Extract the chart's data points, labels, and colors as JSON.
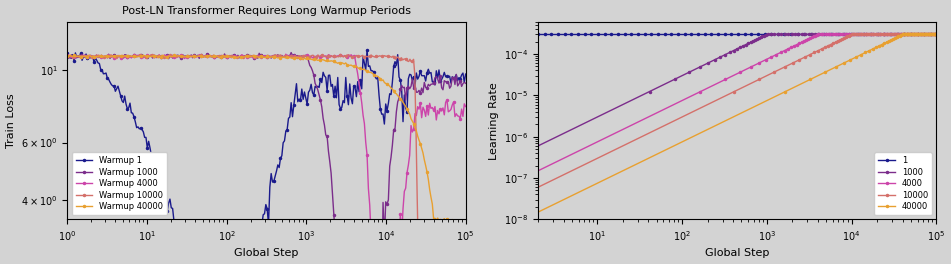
{
  "title": "Post-LN Transformer Requires Long Warmup Periods",
  "colors": {
    "1": "#1a1a8c",
    "1000": "#7b2d8b",
    "4000": "#cc44aa",
    "10000": "#d4706a",
    "40000": "#e8a030"
  },
  "warmup_labels": [
    "1",
    "1000",
    "4000",
    "10000",
    "40000"
  ],
  "max_lr": 0.0003,
  "bg_color": "#d3d3d3",
  "marker": ".",
  "markersize": 3,
  "linewidth": 1.0,
  "left_xlim": [
    1,
    100000
  ],
  "left_ylim": [
    3.5,
    14
  ],
  "right_xlim": [
    2,
    100000
  ],
  "right_ylim": [
    1e-08,
    0.0006
  ],
  "yticks_left": [
    4,
    6,
    10
  ],
  "ytick_labels_left": [
    "$4\\times10^{0}$",
    "$6\\times10^{0}$",
    "$10^{1}$"
  ]
}
